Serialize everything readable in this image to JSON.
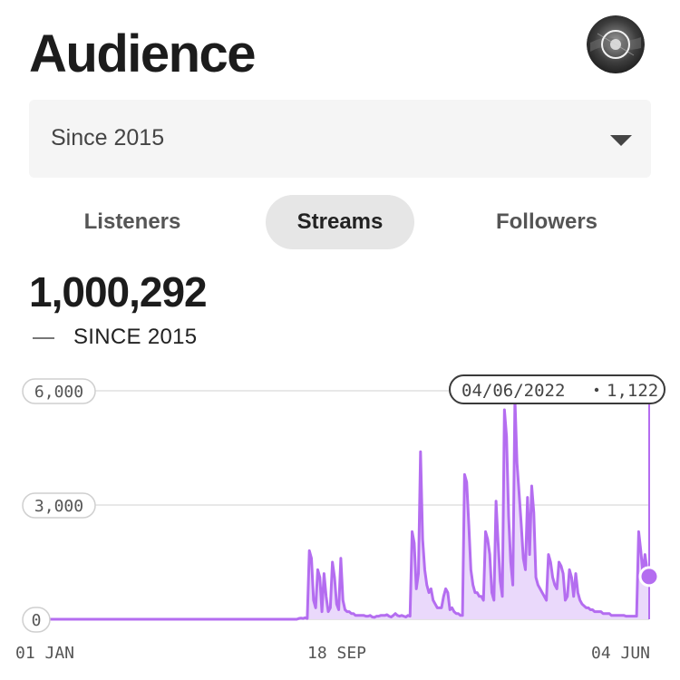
{
  "header": {
    "title": "Audience"
  },
  "profile": {
    "avatar_icon": "user-avatar-icon"
  },
  "range_select": {
    "value": "Since 2015",
    "icon": "caret-down-icon"
  },
  "tabs": [
    {
      "label": "Listeners",
      "active": false
    },
    {
      "label": "Streams",
      "active": true
    },
    {
      "label": "Followers",
      "active": false
    }
  ],
  "summary": {
    "total": "1,000,292",
    "legend": "SINCE 2015"
  },
  "colors": {
    "accent": "#b46df0",
    "accent_fill": "#ead9fb"
  },
  "chart_data": {
    "type": "area",
    "y_ticks": [
      "6,000",
      "3,000",
      "0"
    ],
    "x_ticks": [
      "01 JAN",
      "18 SEP",
      "04 JUN"
    ],
    "ylim": [
      0,
      6000
    ],
    "tooltip": {
      "date": "04/06/2022",
      "value": "1,122"
    },
    "series": [
      {
        "values": [
          0,
          0,
          0,
          0,
          0,
          0,
          0,
          0,
          0,
          0,
          0,
          0,
          0,
          0,
          0,
          0,
          0,
          0,
          0,
          0,
          0,
          0,
          0,
          0,
          0,
          0,
          0,
          0,
          0,
          0,
          0,
          0,
          0,
          0,
          0,
          0,
          0,
          0,
          0,
          0,
          0,
          0,
          0,
          0,
          0,
          0,
          0,
          0,
          0,
          0,
          0,
          0,
          0,
          0,
          0,
          0,
          0,
          0,
          0,
          0,
          0,
          0,
          0,
          0,
          0,
          0,
          0,
          0,
          0,
          0,
          0,
          0,
          0,
          0,
          0,
          0,
          0,
          0,
          0,
          0,
          0,
          0,
          0,
          0,
          0,
          0,
          0,
          0,
          0,
          0,
          0,
          0,
          0,
          0,
          0,
          0,
          0,
          0,
          0,
          0,
          0,
          0,
          0,
          0,
          0,
          0,
          0,
          0,
          0,
          0,
          0,
          0,
          0,
          0,
          0,
          0,
          0,
          0,
          0,
          0,
          20,
          30,
          20,
          40,
          20,
          1800,
          1600,
          500,
          300,
          1300,
          1100,
          200,
          1200,
          600,
          200,
          300,
          1500,
          1100,
          400,
          250,
          1600,
          500,
          250,
          200,
          200,
          150,
          150,
          100,
          100,
          100,
          100,
          100,
          80,
          80,
          100,
          60,
          50,
          80,
          80,
          100,
          100,
          100,
          120,
          80,
          60,
          100,
          150,
          100,
          80,
          100,
          80,
          60,
          100,
          80,
          2300,
          2000,
          800,
          1200,
          4400,
          2100,
          1300,
          900,
          700,
          800,
          500,
          400,
          300,
          300,
          300,
          600,
          800,
          700,
          250,
          300,
          200,
          150,
          150,
          100,
          100,
          3800,
          3600,
          2500,
          1300,
          900,
          700,
          700,
          600,
          600,
          500,
          2300,
          2100,
          1700,
          700,
          500,
          3100,
          2000,
          1000,
          600,
          5500,
          4800,
          2700,
          1500,
          900,
          5800,
          4100,
          3300,
          2500,
          1600,
          1300,
          3200,
          1700,
          3500,
          2800,
          1100,
          900,
          800,
          700,
          600,
          500,
          1700,
          1500,
          1100,
          900,
          800,
          1500,
          1400,
          1200,
          500,
          600,
          1300,
          1100,
          600,
          1200,
          700,
          500,
          400,
          350,
          300,
          300,
          250,
          250,
          200,
          200,
          200,
          200,
          150,
          150,
          150,
          150,
          100,
          100,
          100,
          100,
          100,
          100,
          100,
          80,
          80,
          80,
          80,
          80,
          80,
          2300,
          1800,
          1200,
          1700,
          1300,
          1122
        ]
      }
    ]
  }
}
